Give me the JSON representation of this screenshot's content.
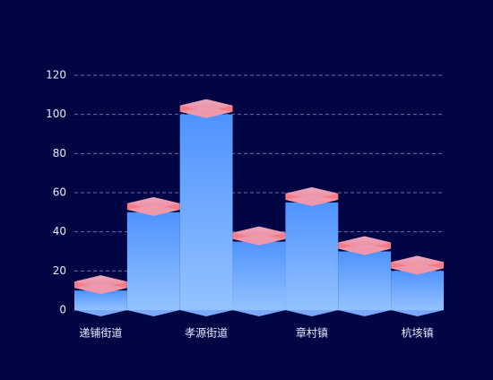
{
  "chart_data": {
    "type": "bar",
    "categories": [
      "递铺街道",
      null,
      "孝源街道",
      null,
      "章村镇",
      null,
      "杭垓镇"
    ],
    "values": [
      10,
      50,
      100,
      35,
      55,
      30,
      20
    ],
    "color": "#5c9dff",
    "ylim": [
      0,
      120
    ],
    "yticks": [
      0,
      20,
      40,
      60,
      80,
      100,
      120
    ],
    "grid": true
  }
}
